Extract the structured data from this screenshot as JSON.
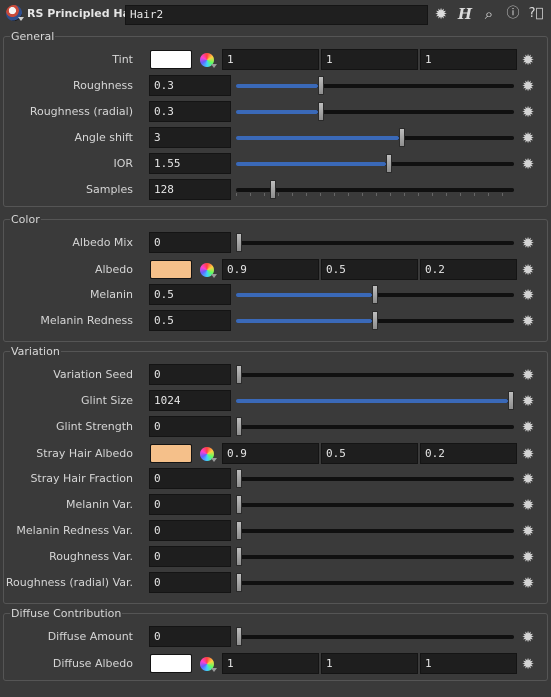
{
  "header": {
    "node_type": "RS Principled Hair",
    "node_name": "Hair2",
    "icons": [
      "gear-icon",
      "h-icon",
      "search-icon",
      "info-icon",
      "help-icon"
    ]
  },
  "colors": {
    "slider_fill": "#3a69b8",
    "panel_bg": "#3a3a3a",
    "field_bg": "#1e1e1e"
  },
  "sections": {
    "general": {
      "title": "General",
      "tint": {
        "label": "Tint",
        "swatch": "#ffffff",
        "values": [
          "1",
          "1",
          "1"
        ]
      },
      "roughness": {
        "label": "Roughness",
        "value": "0.3",
        "fraction": 0.3
      },
      "roughness_radial": {
        "label": "Roughness (radial)",
        "value": "0.3",
        "fraction": 0.3
      },
      "angle_shift": {
        "label": "Angle shift",
        "value": "3",
        "fraction": 0.6
      },
      "ior": {
        "label": "IOR",
        "value": "1.55",
        "fraction": 0.55
      },
      "samples": {
        "label": "Samples",
        "value": "128",
        "fraction": 0.125
      }
    },
    "color": {
      "title": "Color",
      "albedo_mix": {
        "label": "Albedo Mix",
        "value": "0",
        "fraction": 0
      },
      "albedo": {
        "label": "Albedo",
        "swatch": "#f5c08a",
        "values": [
          "0.9",
          "0.5",
          "0.2"
        ]
      },
      "melanin": {
        "label": "Melanin",
        "value": "0.5",
        "fraction": 0.5
      },
      "melanin_redness": {
        "label": "Melanin Redness",
        "value": "0.5",
        "fraction": 0.5
      }
    },
    "variation": {
      "title": "Variation",
      "variation_seed": {
        "label": "Variation Seed",
        "value": "0",
        "fraction": 0
      },
      "glint_size": {
        "label": "Glint Size",
        "value": "1024",
        "fraction": 1.0
      },
      "glint_strength": {
        "label": "Glint Strength",
        "value": "0",
        "fraction": 0
      },
      "stray_hair_albedo": {
        "label": "Stray Hair Albedo",
        "swatch": "#f5c08a",
        "values": [
          "0.9",
          "0.5",
          "0.2"
        ]
      },
      "stray_hair_fraction": {
        "label": "Stray Hair Fraction",
        "value": "0",
        "fraction": 0
      },
      "melanin_var": {
        "label": "Melanin Var.",
        "value": "0",
        "fraction": 0
      },
      "melanin_redness_var": {
        "label": "Melanin Redness Var.",
        "value": "0",
        "fraction": 0
      },
      "roughness_var": {
        "label": "Roughness Var.",
        "value": "0",
        "fraction": 0
      },
      "roughness_radial_var": {
        "label": "Roughness (radial) Var.",
        "value": "0",
        "fraction": 0
      }
    },
    "diffuse": {
      "title": "Diffuse Contribution",
      "diffuse_amount": {
        "label": "Diffuse Amount",
        "value": "0",
        "fraction": 0
      },
      "diffuse_albedo": {
        "label": "Diffuse Albedo",
        "swatch": "#ffffff",
        "values": [
          "1",
          "1",
          "1"
        ]
      }
    }
  }
}
